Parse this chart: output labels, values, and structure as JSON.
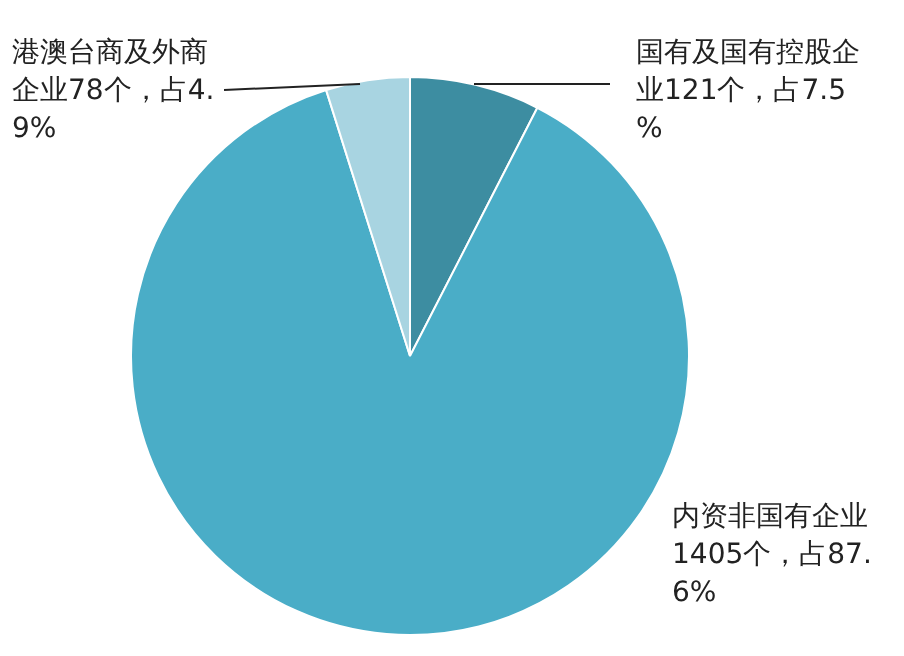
{
  "chart_data": {
    "type": "pie",
    "categories": [
      "国有及国有控股企业121个，占7.5%",
      "内资非国有企业1405个，占87.6%",
      "港澳台商及外商企业78个，占4.9%"
    ],
    "values": [
      121,
      1405,
      78
    ],
    "colors": [
      "#3d8da1",
      "#4aadc7",
      "#a8d4e1"
    ],
    "legend": false
  }
}
